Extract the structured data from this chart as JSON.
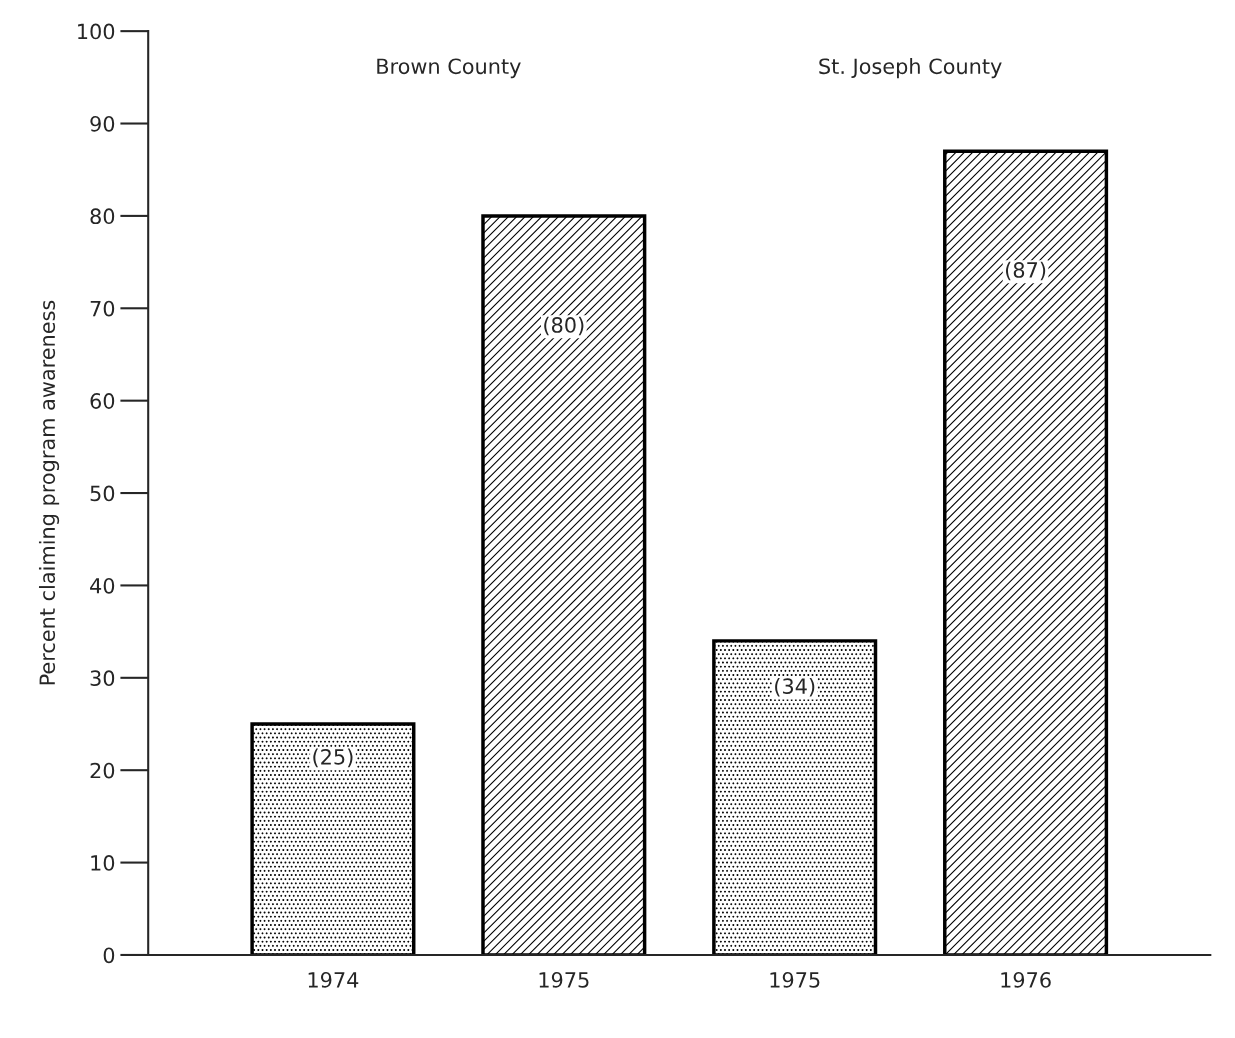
{
  "chart_data": {
    "type": "bar",
    "ylabel": "Percent claiming program awareness",
    "categories": [
      "1974",
      "1975",
      "1975",
      "1976"
    ],
    "values": [
      25,
      80,
      34,
      87
    ],
    "colors": [
      "#000000",
      "#000000",
      "#000000",
      "#000000"
    ],
    "value_labels": [
      "(25)",
      "(80)",
      "(34)",
      "(87)"
    ],
    "annotations": [
      "Brown County",
      "St. Joseph County"
    ],
    "ylim": [
      0,
      100
    ],
    "yticks": [
      0,
      10,
      20,
      30,
      40,
      50,
      60,
      70,
      80,
      90,
      100
    ],
    "grid": false,
    "legend": false
  }
}
